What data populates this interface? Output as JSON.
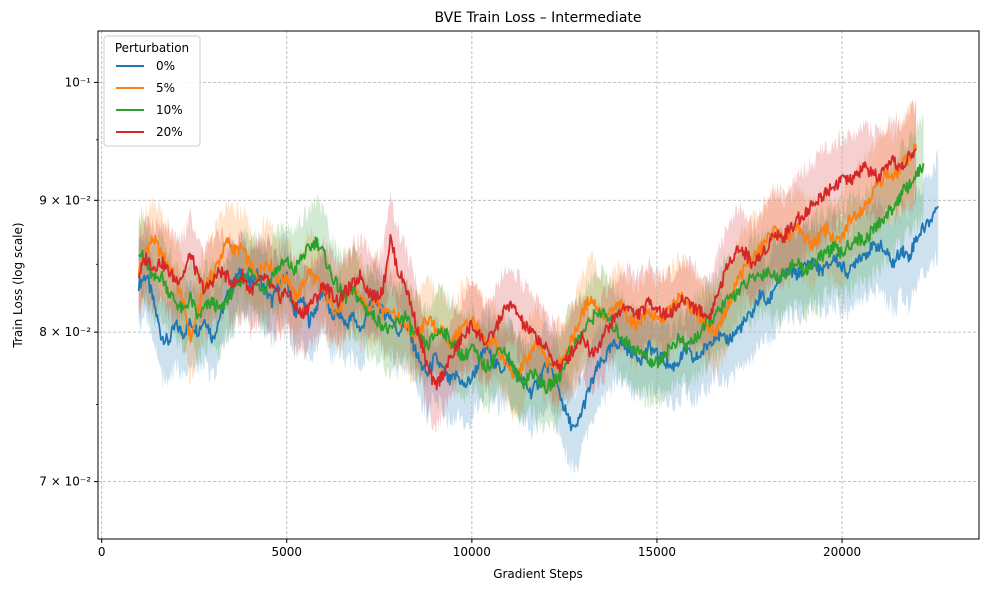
{
  "chart_data": {
    "type": "line",
    "title": "BVE Train Loss – Intermediate",
    "xlabel": "Gradient Steps",
    "ylabel": "Train Loss (log scale)",
    "xlim": [
      -100,
      23700
    ],
    "ylim": [
      0.0665,
      0.1047
    ],
    "yscale": "log",
    "xticks": [
      0,
      5000,
      10000,
      15000,
      20000
    ],
    "xtick_labels": [
      "0",
      "5000",
      "10000",
      "15000",
      "20000"
    ],
    "yticks": [
      0.07,
      0.08,
      0.09,
      0.1
    ],
    "ytick_labels": [
      "7 × 10⁻²",
      "8 × 10⁻²",
      "9 × 10⁻²",
      "10⁻¹"
    ],
    "grid": true,
    "legend": {
      "title": "Perturbation",
      "placement": "top-left"
    },
    "series": [
      {
        "name": "0%",
        "color": "#1f77b4",
        "x": [
          1000,
          1200,
          1400,
          1600,
          1800,
          2000,
          2200,
          2400,
          2600,
          2800,
          3000,
          3200,
          3400,
          3600,
          3800,
          4000,
          4200,
          4400,
          4600,
          4800,
          5000,
          5200,
          5400,
          5600,
          5800,
          6000,
          6200,
          6400,
          6600,
          6800,
          7000,
          7200,
          7400,
          7600,
          7800,
          8000,
          8200,
          8400,
          8600,
          8800,
          9000,
          9200,
          9400,
          9600,
          9800,
          10000,
          10200,
          10400,
          10600,
          10800,
          11000,
          11200,
          11400,
          11600,
          11800,
          12000,
          12200,
          12400,
          12600,
          12800,
          13000,
          13200,
          13400,
          13600,
          13800,
          14000,
          14200,
          14400,
          14600,
          14800,
          15000,
          15200,
          15400,
          15600,
          15800,
          16000,
          16200,
          16400,
          16600,
          16800,
          17000,
          17200,
          17400,
          17600,
          17800,
          18000,
          18200,
          18400,
          18600,
          18800,
          19000,
          19200,
          19400,
          19600,
          19800,
          20000,
          20200,
          20400,
          20600,
          20800,
          21000,
          21200,
          21400,
          21600,
          21800,
          22000,
          22200,
          22400,
          22600
        ],
        "y": [
          0.0835,
          0.0842,
          0.0822,
          0.0798,
          0.0793,
          0.0805,
          0.0799,
          0.0807,
          0.0801,
          0.081,
          0.0795,
          0.0812,
          0.0826,
          0.0838,
          0.0845,
          0.0835,
          0.0842,
          0.0831,
          0.0822,
          0.0835,
          0.084,
          0.0812,
          0.0825,
          0.0808,
          0.0818,
          0.0833,
          0.081,
          0.0815,
          0.0805,
          0.0812,
          0.08,
          0.0818,
          0.0825,
          0.0814,
          0.0812,
          0.08,
          0.0806,
          0.0793,
          0.0778,
          0.077,
          0.0782,
          0.0774,
          0.0765,
          0.077,
          0.0762,
          0.0768,
          0.0779,
          0.079,
          0.0778,
          0.0774,
          0.078,
          0.0771,
          0.0765,
          0.0758,
          0.0765,
          0.0778,
          0.077,
          0.0755,
          0.074,
          0.0732,
          0.0748,
          0.0762,
          0.0775,
          0.0782,
          0.079,
          0.0793,
          0.0788,
          0.0785,
          0.0781,
          0.079,
          0.0784,
          0.078,
          0.0775,
          0.078,
          0.0787,
          0.078,
          0.0785,
          0.0792,
          0.0799,
          0.0794,
          0.0796,
          0.0802,
          0.0808,
          0.0815,
          0.0828,
          0.082,
          0.0835,
          0.084,
          0.0845,
          0.0842,
          0.0848,
          0.0852,
          0.0845,
          0.0848,
          0.0855,
          0.0848,
          0.0843,
          0.0855,
          0.0858,
          0.0862,
          0.0865,
          0.0858,
          0.085,
          0.0862,
          0.0855,
          0.087,
          0.0878,
          0.0885,
          0.0897
        ]
      },
      {
        "name": "5%",
        "color": "#ff7f0e",
        "x": [
          1000,
          1200,
          1400,
          1600,
          1800,
          2000,
          2200,
          2400,
          2600,
          2800,
          3000,
          3200,
          3400,
          3600,
          3800,
          4000,
          4200,
          4400,
          4600,
          4800,
          5000,
          5200,
          5400,
          5600,
          5800,
          6000,
          6200,
          6400,
          6600,
          6800,
          7000,
          7200,
          7400,
          7600,
          7800,
          8000,
          8200,
          8400,
          8600,
          8800,
          9000,
          9200,
          9400,
          9600,
          9800,
          10000,
          10200,
          10400,
          10600,
          10800,
          11000,
          11200,
          11400,
          11600,
          11800,
          12000,
          12200,
          12400,
          12600,
          12800,
          13000,
          13200,
          13400,
          13600,
          13800,
          14000,
          14200,
          14400,
          14600,
          14800,
          15000,
          15200,
          15400,
          15600,
          15800,
          16000,
          16200,
          16400,
          16600,
          16800,
          17000,
          17200,
          17400,
          17600,
          17800,
          18000,
          18200,
          18400,
          18600,
          18800,
          19000,
          19200,
          19400,
          19600,
          19800,
          20000,
          20200,
          20400,
          20600,
          20800,
          21000,
          21200,
          21400,
          21600,
          21800,
          22000
        ],
        "y": [
          0.0845,
          0.0862,
          0.087,
          0.0858,
          0.085,
          0.0838,
          0.0822,
          0.0795,
          0.0815,
          0.0836,
          0.0842,
          0.0855,
          0.0868,
          0.086,
          0.0862,
          0.085,
          0.084,
          0.0852,
          0.0848,
          0.0835,
          0.0842,
          0.0825,
          0.0832,
          0.0845,
          0.0838,
          0.083,
          0.082,
          0.0815,
          0.0825,
          0.0832,
          0.0822,
          0.0818,
          0.0825,
          0.0815,
          0.0818,
          0.081,
          0.0805,
          0.0798,
          0.08,
          0.081,
          0.0803,
          0.08,
          0.0792,
          0.0798,
          0.0805,
          0.081,
          0.08,
          0.079,
          0.0795,
          0.0782,
          0.0775,
          0.0768,
          0.0778,
          0.0785,
          0.0792,
          0.078,
          0.0775,
          0.0782,
          0.0788,
          0.08,
          0.0815,
          0.0825,
          0.0818,
          0.081,
          0.0815,
          0.082,
          0.0812,
          0.0805,
          0.081,
          0.0815,
          0.0808,
          0.0812,
          0.0818,
          0.0825,
          0.0822,
          0.0815,
          0.081,
          0.0805,
          0.08,
          0.0812,
          0.0825,
          0.084,
          0.0848,
          0.0855,
          0.0862,
          0.087,
          0.0876,
          0.0868,
          0.0872,
          0.0878,
          0.087,
          0.0865,
          0.0872,
          0.0878,
          0.0866,
          0.087,
          0.0885,
          0.089,
          0.0895,
          0.0905,
          0.0915,
          0.0922,
          0.0918,
          0.0928,
          0.0935,
          0.0944
        ]
      },
      {
        "name": "10%",
        "color": "#2ca02c",
        "x": [
          1000,
          1200,
          1400,
          1600,
          1800,
          2000,
          2200,
          2400,
          2600,
          2800,
          3000,
          3200,
          3400,
          3600,
          3800,
          4000,
          4200,
          4400,
          4600,
          4800,
          5000,
          5200,
          5400,
          5600,
          5800,
          6000,
          6200,
          6400,
          6600,
          6800,
          7000,
          7200,
          7400,
          7600,
          7800,
          8000,
          8200,
          8400,
          8600,
          8800,
          9000,
          9200,
          9400,
          9600,
          9800,
          10000,
          10200,
          10400,
          10600,
          10800,
          11000,
          11200,
          11400,
          11600,
          11800,
          12000,
          12200,
          12400,
          12600,
          12800,
          13000,
          13200,
          13400,
          13600,
          13800,
          14000,
          14200,
          14400,
          14600,
          14800,
          15000,
          15200,
          15400,
          15600,
          15800,
          16000,
          16200,
          16400,
          16600,
          16800,
          17000,
          17200,
          17400,
          17600,
          17800,
          18000,
          18200,
          18400,
          18600,
          18800,
          19000,
          19200,
          19400,
          19600,
          19800,
          20000,
          20200,
          20400,
          20600,
          20800,
          21000,
          21200,
          21400,
          21600,
          21800,
          22000,
          22200
        ],
        "y": [
          0.0862,
          0.085,
          0.0838,
          0.0842,
          0.083,
          0.0822,
          0.0815,
          0.0825,
          0.081,
          0.0818,
          0.0822,
          0.0815,
          0.0825,
          0.0832,
          0.084,
          0.0845,
          0.0838,
          0.083,
          0.0842,
          0.0848,
          0.0852,
          0.0845,
          0.0855,
          0.0862,
          0.0868,
          0.0858,
          0.0842,
          0.0832,
          0.0825,
          0.083,
          0.0822,
          0.0815,
          0.081,
          0.0805,
          0.08,
          0.0808,
          0.0812,
          0.08,
          0.0795,
          0.079,
          0.0798,
          0.0802,
          0.0795,
          0.0788,
          0.0782,
          0.079,
          0.078,
          0.0775,
          0.0782,
          0.079,
          0.0782,
          0.077,
          0.0765,
          0.0772,
          0.0768,
          0.076,
          0.0765,
          0.077,
          0.0785,
          0.0792,
          0.08,
          0.0808,
          0.0815,
          0.0812,
          0.0805,
          0.0798,
          0.0792,
          0.0788,
          0.0785,
          0.078,
          0.0778,
          0.0785,
          0.079,
          0.0795,
          0.079,
          0.0795,
          0.08,
          0.0808,
          0.0812,
          0.082,
          0.0825,
          0.083,
          0.0835,
          0.084,
          0.0842,
          0.0845,
          0.084,
          0.0842,
          0.0848,
          0.085,
          0.0845,
          0.085,
          0.0855,
          0.086,
          0.0862,
          0.0858,
          0.0865,
          0.087,
          0.0868,
          0.0875,
          0.0882,
          0.0888,
          0.0895,
          0.0905,
          0.0912,
          0.092,
          0.0928
        ]
      },
      {
        "name": "20%",
        "color": "#d62728",
        "x": [
          1000,
          1200,
          1400,
          1600,
          1800,
          2000,
          2200,
          2400,
          2600,
          2800,
          3000,
          3200,
          3400,
          3600,
          3800,
          4000,
          4200,
          4400,
          4600,
          4800,
          5000,
          5200,
          5400,
          5600,
          5800,
          6000,
          6200,
          6400,
          6600,
          6800,
          7000,
          7200,
          7400,
          7600,
          7800,
          8000,
          8200,
          8400,
          8600,
          8800,
          9000,
          9200,
          9400,
          9600,
          9800,
          10000,
          10200,
          10400,
          10600,
          10800,
          11000,
          11200,
          11400,
          11600,
          11800,
          12000,
          12200,
          12400,
          12600,
          12800,
          13000,
          13200,
          13400,
          13600,
          13800,
          14000,
          14200,
          14400,
          14600,
          14800,
          15000,
          15200,
          15400,
          15600,
          15800,
          16000,
          16200,
          16400,
          16600,
          16800,
          17000,
          17200,
          17400,
          17600,
          17800,
          18000,
          18200,
          18400,
          18600,
          18800,
          19000,
          19200,
          19400,
          19600,
          19800,
          20000,
          20200,
          20400,
          20600,
          20800,
          21000,
          21200,
          21400,
          21600,
          21800,
          22000
        ],
        "y": [
          0.0842,
          0.0855,
          0.0848,
          0.0852,
          0.0845,
          0.0838,
          0.0842,
          0.0858,
          0.084,
          0.083,
          0.0838,
          0.0845,
          0.084,
          0.0835,
          0.0842,
          0.083,
          0.0835,
          0.084,
          0.0832,
          0.0825,
          0.083,
          0.082,
          0.0812,
          0.082,
          0.0825,
          0.0835,
          0.0828,
          0.0822,
          0.083,
          0.0835,
          0.0842,
          0.083,
          0.0825,
          0.0832,
          0.087,
          0.0845,
          0.0835,
          0.0815,
          0.0795,
          0.0775,
          0.0762,
          0.077,
          0.078,
          0.079,
          0.0798,
          0.0805,
          0.0798,
          0.0792,
          0.08,
          0.0812,
          0.082,
          0.0815,
          0.0805,
          0.08,
          0.0795,
          0.0788,
          0.078,
          0.0775,
          0.0782,
          0.079,
          0.0798,
          0.0785,
          0.079,
          0.08,
          0.0808,
          0.0815,
          0.082,
          0.0812,
          0.0815,
          0.0822,
          0.0818,
          0.0812,
          0.0815,
          0.082,
          0.0825,
          0.0818,
          0.0815,
          0.081,
          0.0825,
          0.084,
          0.0855,
          0.0862,
          0.0858,
          0.085,
          0.0856,
          0.0865,
          0.0875,
          0.087,
          0.0878,
          0.0885,
          0.089,
          0.0896,
          0.0902,
          0.0908,
          0.0912,
          0.0918,
          0.0915,
          0.092,
          0.0928,
          0.0922,
          0.0918,
          0.0925,
          0.0932,
          0.0926,
          0.0935,
          0.094
        ]
      }
    ]
  }
}
